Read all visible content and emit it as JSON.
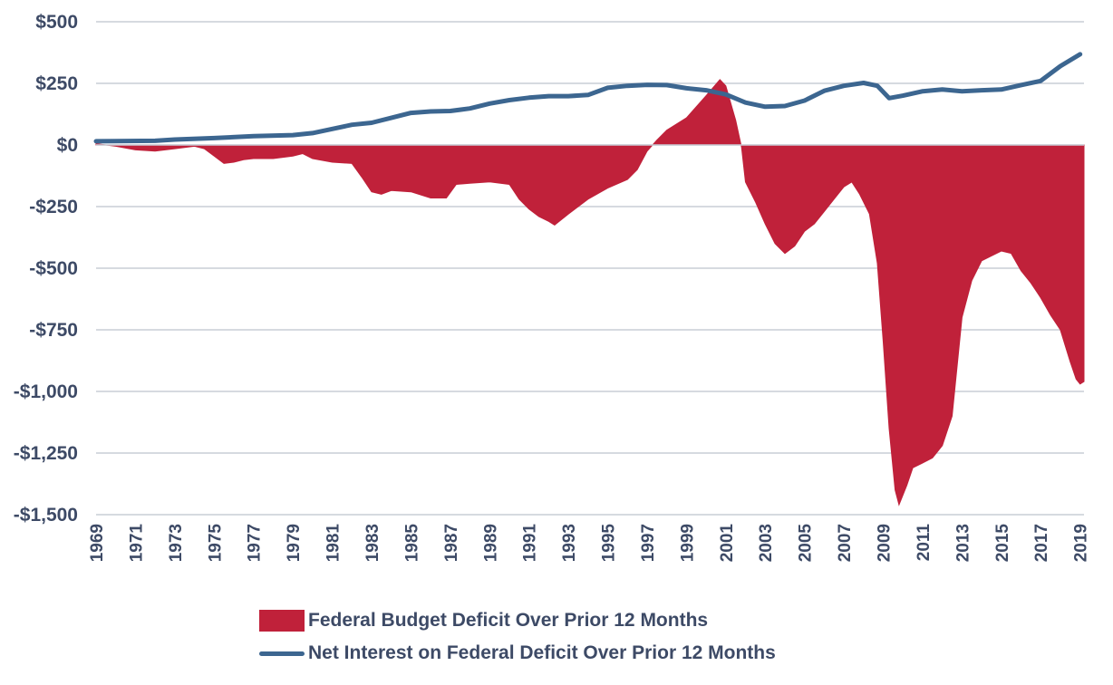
{
  "chart_data": {
    "type": "area",
    "x_start": 1969.0,
    "x_end": 2019.2,
    "ylim": [
      -1500,
      500
    ],
    "yticks": [
      500,
      250,
      0,
      -250,
      -500,
      -750,
      -1000,
      -1250,
      -1500
    ],
    "ytick_labels": [
      "$500",
      "$250",
      "$0",
      "-$250",
      "-$500",
      "-$750",
      "-$1,000",
      "-$1,250",
      "-$1,500"
    ],
    "xticks": [
      1969,
      1971,
      1973,
      1975,
      1977,
      1979,
      1981,
      1983,
      1985,
      1987,
      1989,
      1991,
      1993,
      1995,
      1997,
      1999,
      2001,
      2003,
      2005,
      2007,
      2009,
      2011,
      2013,
      2015,
      2017,
      2019
    ],
    "xtick_labels": [
      "1969",
      "1971",
      "1973",
      "1975",
      "1977",
      "1979",
      "1981",
      "1983",
      "1985",
      "1987",
      "1989",
      "1991",
      "1993",
      "1995",
      "1997",
      "1999",
      "2001",
      "2003",
      "2005",
      "2007",
      "2009",
      "2011",
      "2013",
      "2015",
      "2017",
      "2019"
    ],
    "grid": true,
    "legend_position": "bottom",
    "series": [
      {
        "name": "Federal Budget Deficit Over Prior 12 Months",
        "kind": "area",
        "color": "#c0213a",
        "points": [
          [
            1969.0,
            5
          ],
          [
            1970.0,
            -5
          ],
          [
            1971.0,
            -20
          ],
          [
            1972.0,
            -25
          ],
          [
            1973.0,
            -15
          ],
          [
            1974.0,
            -5
          ],
          [
            1974.5,
            -15
          ],
          [
            1975.0,
            -45
          ],
          [
            1975.5,
            -75
          ],
          [
            1976.0,
            -70
          ],
          [
            1976.5,
            -60
          ],
          [
            1977.0,
            -55
          ],
          [
            1978.0,
            -55
          ],
          [
            1979.0,
            -45
          ],
          [
            1979.5,
            -35
          ],
          [
            1980.0,
            -55
          ],
          [
            1981.0,
            -70
          ],
          [
            1982.0,
            -75
          ],
          [
            1982.5,
            -130
          ],
          [
            1983.0,
            -190
          ],
          [
            1983.5,
            -200
          ],
          [
            1984.0,
            -185
          ],
          [
            1985.0,
            -190
          ],
          [
            1986.0,
            -215
          ],
          [
            1986.8,
            -215
          ],
          [
            1987.3,
            -160
          ],
          [
            1988.0,
            -155
          ],
          [
            1989.0,
            -150
          ],
          [
            1990.0,
            -160
          ],
          [
            1990.5,
            -220
          ],
          [
            1991.0,
            -260
          ],
          [
            1991.5,
            -290
          ],
          [
            1992.0,
            -310
          ],
          [
            1992.3,
            -325
          ],
          [
            1993.0,
            -280
          ],
          [
            1994.0,
            -220
          ],
          [
            1995.0,
            -175
          ],
          [
            1996.0,
            -140
          ],
          [
            1996.5,
            -100
          ],
          [
            1997.0,
            -25
          ],
          [
            1997.5,
            20
          ],
          [
            1998.0,
            60
          ],
          [
            1999.0,
            110
          ],
          [
            2000.0,
            200
          ],
          [
            2000.7,
            265
          ],
          [
            2001.0,
            240
          ],
          [
            2001.5,
            100
          ],
          [
            2001.8,
            -10
          ],
          [
            2002.0,
            -150
          ],
          [
            2002.5,
            -230
          ],
          [
            2003.0,
            -320
          ],
          [
            2003.5,
            -400
          ],
          [
            2004.0,
            -440
          ],
          [
            2004.5,
            -410
          ],
          [
            2005.0,
            -350
          ],
          [
            2005.5,
            -320
          ],
          [
            2006.0,
            -270
          ],
          [
            2006.5,
            -220
          ],
          [
            2007.0,
            -170
          ],
          [
            2007.4,
            -150
          ],
          [
            2007.8,
            -200
          ],
          [
            2008.3,
            -280
          ],
          [
            2008.7,
            -480
          ],
          [
            2009.0,
            -800
          ],
          [
            2009.3,
            -1150
          ],
          [
            2009.6,
            -1400
          ],
          [
            2009.8,
            -1460
          ],
          [
            2010.2,
            -1380
          ],
          [
            2010.5,
            -1310
          ],
          [
            2011.0,
            -1290
          ],
          [
            2011.5,
            -1270
          ],
          [
            2012.0,
            -1220
          ],
          [
            2012.5,
            -1100
          ],
          [
            2013.0,
            -700
          ],
          [
            2013.5,
            -550
          ],
          [
            2014.0,
            -470
          ],
          [
            2014.5,
            -450
          ],
          [
            2015.0,
            -430
          ],
          [
            2015.5,
            -440
          ],
          [
            2016.0,
            -510
          ],
          [
            2016.5,
            -560
          ],
          [
            2017.0,
            -620
          ],
          [
            2017.5,
            -690
          ],
          [
            2018.0,
            -750
          ],
          [
            2018.5,
            -880
          ],
          [
            2018.8,
            -950
          ],
          [
            2019.0,
            -970
          ],
          [
            2019.2,
            -960
          ]
        ]
      },
      {
        "name": "Net Interest on Federal Deficit Over Prior 12 Months",
        "kind": "line",
        "color": "#3c6690",
        "points": [
          [
            1969.0,
            15
          ],
          [
            1972.0,
            17
          ],
          [
            1973.0,
            22
          ],
          [
            1975.0,
            28
          ],
          [
            1977.0,
            36
          ],
          [
            1979.0,
            40
          ],
          [
            1980.0,
            48
          ],
          [
            1981.0,
            65
          ],
          [
            1982.0,
            82
          ],
          [
            1983.0,
            90
          ],
          [
            1984.0,
            110
          ],
          [
            1985.0,
            130
          ],
          [
            1986.0,
            136
          ],
          [
            1987.0,
            138
          ],
          [
            1988.0,
            148
          ],
          [
            1989.0,
            168
          ],
          [
            1990.0,
            182
          ],
          [
            1991.0,
            192
          ],
          [
            1992.0,
            198
          ],
          [
            1993.0,
            198
          ],
          [
            1994.0,
            203
          ],
          [
            1995.0,
            232
          ],
          [
            1996.0,
            240
          ],
          [
            1997.0,
            244
          ],
          [
            1998.0,
            243
          ],
          [
            1999.0,
            230
          ],
          [
            2000.0,
            222
          ],
          [
            2001.0,
            205
          ],
          [
            2002.0,
            172
          ],
          [
            2003.0,
            155
          ],
          [
            2004.0,
            158
          ],
          [
            2005.0,
            180
          ],
          [
            2006.0,
            220
          ],
          [
            2007.0,
            240
          ],
          [
            2008.0,
            252
          ],
          [
            2008.7,
            240
          ],
          [
            2009.3,
            190
          ],
          [
            2010.0,
            200
          ],
          [
            2011.0,
            218
          ],
          [
            2012.0,
            225
          ],
          [
            2013.0,
            218
          ],
          [
            2014.0,
            222
          ],
          [
            2015.0,
            225
          ],
          [
            2016.0,
            243
          ],
          [
            2017.0,
            260
          ],
          [
            2018.0,
            320
          ],
          [
            2019.0,
            368
          ]
        ]
      }
    ]
  }
}
